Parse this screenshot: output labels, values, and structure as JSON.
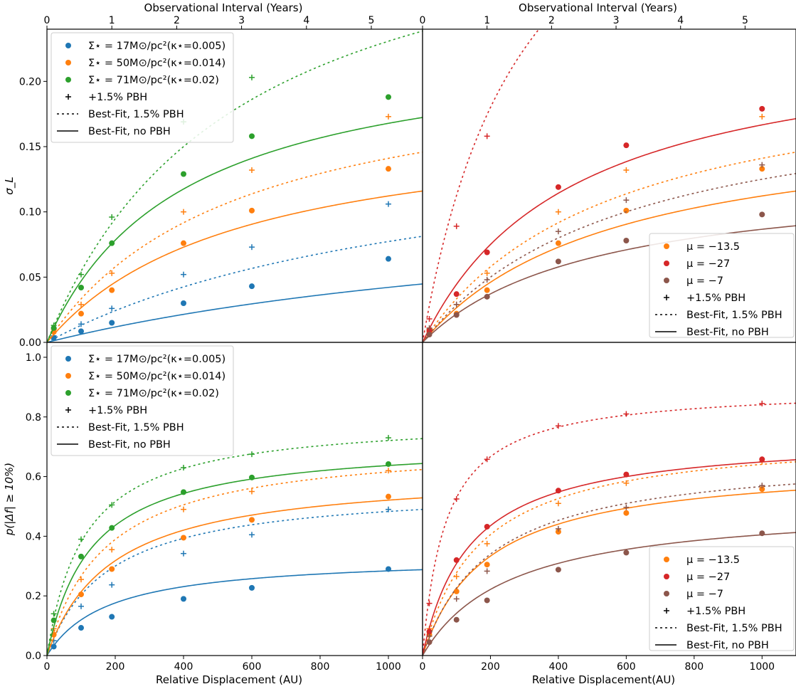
{
  "colors": {
    "blue": "#1f77b4",
    "orange": "#ff7f0e",
    "green": "#2ca02c",
    "red": "#d62728",
    "brown": "#8c564b",
    "black": "#000000"
  },
  "chart_data": [
    {
      "id": "top-left",
      "type": "scatter",
      "xlim": [
        0,
        1100
      ],
      "ylim": [
        0,
        0.24
      ],
      "ylabel": "σ_L",
      "xlabel": "",
      "top_axis_label": "Observational Interval (Years)",
      "top_ticks": [
        "0",
        "1",
        "2",
        "3",
        "4",
        "5"
      ],
      "yticks": [
        "0.00",
        "0.05",
        "0.10",
        "0.15",
        "0.20"
      ],
      "xticks": [],
      "legend": {
        "position": "upper-left",
        "entries": [
          {
            "kind": "dot",
            "color": "blue",
            "label": "Σ⋆ = 17M⊙/pc²(κ⋆=0.005)"
          },
          {
            "kind": "dot",
            "color": "orange",
            "label": "Σ⋆ = 50M⊙/pc²(κ⋆=0.014)"
          },
          {
            "kind": "dot",
            "color": "green",
            "label": "Σ⋆ = 71M⊙/pc²(κ⋆=0.02)"
          },
          {
            "kind": "plus",
            "color": "black",
            "label": "+1.5% PBH"
          },
          {
            "kind": "dash",
            "color": "black",
            "label": "Best-Fit, 1.5% PBH"
          },
          {
            "kind": "solid",
            "color": "black",
            "label": "Best-Fit, no PBH"
          }
        ]
      },
      "series": [
        {
          "color": "blue",
          "points": [
            [
              20,
              0.0035
            ],
            [
              100,
              0.0085
            ],
            [
              190,
              0.015
            ],
            [
              400,
              0.03
            ],
            [
              600,
              0.043
            ],
            [
              1000,
              0.064
            ]
          ],
          "pbh_points": [
            [
              20,
              0.005
            ],
            [
              100,
              0.014
            ],
            [
              190,
              0.026
            ],
            [
              400,
              0.052
            ],
            [
              600,
              0.073
            ],
            [
              1000,
              0.106
            ]
          ],
          "fit": [
            0.118,
            1800
          ],
          "fit_pbh": [
            0.17,
            1200
          ]
        },
        {
          "color": "orange",
          "points": [
            [
              20,
              0.008
            ],
            [
              100,
              0.022
            ],
            [
              190,
              0.04
            ],
            [
              400,
              0.076
            ],
            [
              600,
              0.101
            ],
            [
              1000,
              0.133
            ]
          ],
          "pbh_points": [
            [
              20,
              0.01
            ],
            [
              100,
              0.029
            ],
            [
              190,
              0.053
            ],
            [
              400,
              0.1
            ],
            [
              600,
              0.132
            ],
            [
              1000,
              0.173
            ]
          ],
          "fit": [
            0.175,
            560
          ],
          "fit_pbh": [
            0.22,
            560
          ]
        },
        {
          "color": "green",
          "points": [
            [
              20,
              0.011
            ],
            [
              100,
              0.042
            ],
            [
              190,
              0.076
            ],
            [
              400,
              0.129
            ],
            [
              600,
              0.158
            ],
            [
              1000,
              0.188
            ]
          ],
          "pbh_points": [
            [
              20,
              0.013
            ],
            [
              100,
              0.052
            ],
            [
              190,
              0.096
            ],
            [
              400,
              0.169
            ],
            [
              600,
              0.203
            ]
          ],
          "fit": [
            0.235,
            400
          ],
          "fit_pbh": [
            0.36,
            560
          ]
        }
      ]
    },
    {
      "id": "top-right",
      "type": "scatter",
      "xlim": [
        0,
        1100
      ],
      "ylim": [
        0,
        0.24
      ],
      "ylabel": "",
      "xlabel": "",
      "top_axis_label": "Observational Interval (Years)",
      "top_ticks": [
        "0",
        "1",
        "2",
        "3",
        "4",
        "5"
      ],
      "yticks": [],
      "xticks": [],
      "legend": {
        "position": "lower-right",
        "entries": [
          {
            "kind": "dot",
            "color": "orange",
            "label": "μ = −13.5"
          },
          {
            "kind": "dot",
            "color": "red",
            "label": "μ = −27"
          },
          {
            "kind": "dot",
            "color": "brown",
            "label": "μ = −7"
          },
          {
            "kind": "plus",
            "color": "black",
            "label": "+1.5% PBH"
          },
          {
            "kind": "dash",
            "color": "black",
            "label": "Best-Fit, 1.5% PBH"
          },
          {
            "kind": "solid",
            "color": "black",
            "label": "Best-Fit, no PBH"
          }
        ]
      },
      "series": [
        {
          "color": "orange",
          "points": [
            [
              20,
              0.008
            ],
            [
              100,
              0.022
            ],
            [
              190,
              0.04
            ],
            [
              400,
              0.076
            ],
            [
              600,
              0.101
            ],
            [
              1000,
              0.133
            ]
          ],
          "pbh_points": [
            [
              20,
              0.01
            ],
            [
              100,
              0.029
            ],
            [
              190,
              0.053
            ],
            [
              400,
              0.1
            ],
            [
              600,
              0.132
            ],
            [
              1000,
              0.173
            ]
          ],
          "fit": [
            0.175,
            560
          ],
          "fit_pbh": [
            0.22,
            560
          ]
        },
        {
          "color": "red",
          "points": [
            [
              20,
              0.009
            ],
            [
              100,
              0.037
            ],
            [
              190,
              0.069
            ],
            [
              400,
              0.119
            ],
            [
              600,
              0.151
            ],
            [
              1000,
              0.179
            ]
          ],
          "pbh_points": [
            [
              20,
              0.018
            ],
            [
              100,
              0.089
            ],
            [
              190,
              0.158
            ]
          ],
          "fit": [
            0.24,
            440
          ],
          "fit_pbh": [
            0.45,
            300
          ]
        },
        {
          "color": "brown",
          "points": [
            [
              20,
              0.006
            ],
            [
              100,
              0.021
            ],
            [
              190,
              0.035
            ],
            [
              400,
              0.062
            ],
            [
              600,
              0.078
            ],
            [
              1000,
              0.098
            ]
          ],
          "pbh_points": [
            [
              20,
              0.011
            ],
            [
              100,
              0.029
            ],
            [
              190,
              0.048
            ],
            [
              400,
              0.085
            ],
            [
              600,
              0.109
            ],
            [
              1000,
              0.136
            ]
          ],
          "fit": [
            0.13,
            500
          ],
          "fit_pbh": [
            0.2,
            600
          ]
        }
      ]
    },
    {
      "id": "bottom-left",
      "type": "scatter",
      "xlim": [
        0,
        1100
      ],
      "ylim": [
        0,
        1.05
      ],
      "ylabel": "p(|Δf| ≥ 10%)",
      "xlabel": "Relative Displacement (AU)",
      "top_axis_label": "",
      "top_ticks": [],
      "yticks": [
        "0.0",
        "0.2",
        "0.4",
        "0.6",
        "0.8",
        "1.0"
      ],
      "xticks": [
        "0",
        "200",
        "400",
        "600",
        "800",
        "1000"
      ],
      "legend": {
        "position": "upper-left",
        "entries": [
          {
            "kind": "dot",
            "color": "blue",
            "label": "Σ⋆ = 17M⊙/pc²(κ⋆=0.005)"
          },
          {
            "kind": "dot",
            "color": "orange",
            "label": "Σ⋆ = 50M⊙/pc²(κ⋆=0.014)"
          },
          {
            "kind": "dot",
            "color": "green",
            "label": "Σ⋆ = 71M⊙/pc²(κ⋆=0.02)"
          },
          {
            "kind": "plus",
            "color": "black",
            "label": "+1.5% PBH"
          },
          {
            "kind": "dash",
            "color": "black",
            "label": "Best-Fit, 1.5% PBH"
          },
          {
            "kind": "solid",
            "color": "black",
            "label": "Best-Fit, no PBH"
          }
        ]
      },
      "series": [
        {
          "color": "blue",
          "points": [
            [
              20,
              0.03
            ],
            [
              100,
              0.093
            ],
            [
              190,
              0.13
            ],
            [
              400,
              0.19
            ],
            [
              600,
              0.227
            ],
            [
              1000,
              0.29
            ]
          ],
          "pbh_points": [
            [
              20,
              0.05
            ],
            [
              100,
              0.165
            ],
            [
              190,
              0.237
            ],
            [
              400,
              0.342
            ],
            [
              600,
              0.405
            ],
            [
              1000,
              0.49
            ]
          ],
          "fit": [
            0.335,
            180
          ],
          "fit_pbh": [
            0.57,
            180
          ]
        },
        {
          "color": "orange",
          "points": [
            [
              20,
              0.07
            ],
            [
              100,
              0.205
            ],
            [
              190,
              0.29
            ],
            [
              400,
              0.395
            ],
            [
              600,
              0.455
            ],
            [
              1000,
              0.533
            ]
          ],
          "pbh_points": [
            [
              20,
              0.09
            ],
            [
              100,
              0.255
            ],
            [
              190,
              0.355
            ],
            [
              400,
              0.49
            ],
            [
              600,
              0.55
            ],
            [
              1000,
              0.62
            ]
          ],
          "fit": [
            0.62,
            190
          ],
          "fit_pbh": [
            0.72,
            170
          ]
        },
        {
          "color": "green",
          "points": [
            [
              20,
              0.118
            ],
            [
              100,
              0.332
            ],
            [
              190,
              0.428
            ],
            [
              400,
              0.548
            ],
            [
              600,
              0.597
            ],
            [
              1000,
              0.642
            ]
          ],
          "pbh_points": [
            [
              20,
              0.14
            ],
            [
              100,
              0.39
            ],
            [
              190,
              0.505
            ],
            [
              400,
              0.63
            ],
            [
              600,
              0.675
            ],
            [
              1000,
              0.73
            ]
          ],
          "fit": [
            0.72,
            130
          ],
          "fit_pbh": [
            0.8,
            110
          ]
        }
      ]
    },
    {
      "id": "bottom-right",
      "type": "scatter",
      "xlim": [
        0,
        1100
      ],
      "ylim": [
        0,
        1.05
      ],
      "ylabel": "",
      "xlabel": "Relative Displacement(AU)",
      "top_axis_label": "",
      "top_ticks": [],
      "yticks": [],
      "xticks": [
        "0",
        "200",
        "400",
        "600",
        "800",
        "1000"
      ],
      "legend": {
        "position": "lower-right",
        "entries": [
          {
            "kind": "dot",
            "color": "orange",
            "label": "μ = −13.5"
          },
          {
            "kind": "dot",
            "color": "red",
            "label": "μ = −27"
          },
          {
            "kind": "dot",
            "color": "brown",
            "label": "μ = −7"
          },
          {
            "kind": "plus",
            "color": "black",
            "label": "+1.5% PBH"
          },
          {
            "kind": "dash",
            "color": "black",
            "label": "Best-Fit, 1.5% PBH"
          },
          {
            "kind": "solid",
            "color": "black",
            "label": "Best-Fit, no PBH"
          }
        ]
      },
      "series": [
        {
          "color": "orange",
          "points": [
            [
              20,
              0.07
            ],
            [
              100,
              0.215
            ],
            [
              190,
              0.305
            ],
            [
              400,
              0.415
            ],
            [
              600,
              0.478
            ],
            [
              1000,
              0.558
            ]
          ],
          "pbh_points": [
            [
              20,
              0.09
            ],
            [
              100,
              0.265
            ],
            [
              190,
              0.375
            ],
            [
              400,
              0.51
            ],
            [
              600,
              0.578
            ],
            [
              1000,
              0.65
            ]
          ],
          "fit": [
            0.65,
            190
          ],
          "fit_pbh": [
            0.75,
            170
          ]
        },
        {
          "color": "red",
          "points": [
            [
              20,
              0.08
            ],
            [
              100,
              0.32
            ],
            [
              190,
              0.432
            ],
            [
              400,
              0.553
            ],
            [
              600,
              0.607
            ],
            [
              1000,
              0.658
            ]
          ],
          "pbh_points": [
            [
              20,
              0.175
            ],
            [
              100,
              0.525
            ],
            [
              190,
              0.658
            ],
            [
              400,
              0.77
            ],
            [
              600,
              0.81
            ],
            [
              1000,
              0.845
            ]
          ],
          "fit": [
            0.74,
            140
          ],
          "fit_pbh": [
            0.9,
            70
          ]
        },
        {
          "color": "brown",
          "points": [
            [
              20,
              0.045
            ],
            [
              100,
              0.12
            ],
            [
              190,
              0.185
            ],
            [
              400,
              0.288
            ],
            [
              600,
              0.345
            ],
            [
              1000,
              0.41
            ]
          ],
          "pbh_points": [
            [
              20,
              0.065
            ],
            [
              100,
              0.19
            ],
            [
              190,
              0.283
            ],
            [
              400,
              0.425
            ],
            [
              600,
              0.497
            ],
            [
              1000,
              0.57
            ]
          ],
          "fit": [
            0.51,
            260
          ],
          "fit_pbh": [
            0.68,
            200
          ]
        }
      ]
    }
  ]
}
